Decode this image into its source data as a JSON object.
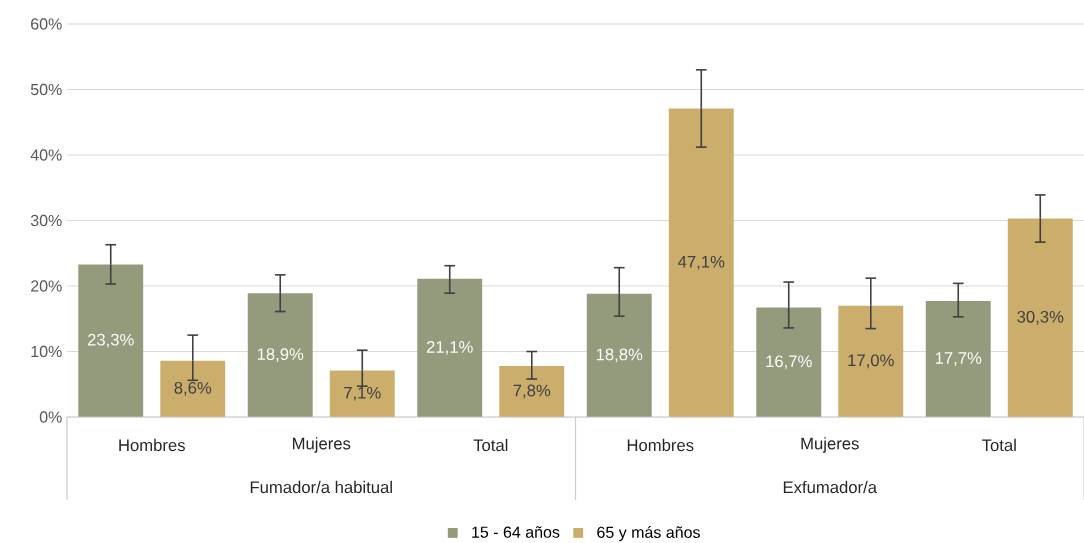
{
  "chart_data": {
    "type": "bar",
    "categories": [
      "Hombres",
      "Mujeres",
      "Total",
      "Hombres",
      "Mujeres",
      "Total"
    ],
    "annotations": [
      "Fumador/a habitual",
      "Exfumador/a"
    ],
    "series": [
      {
        "name": "15 - 64 años",
        "color": "#939b7c",
        "values": [
          23.3,
          18.9,
          21.1,
          18.8,
          16.7,
          17.7
        ],
        "value_labels": [
          "23,3%",
          "18,9%",
          "21,1%",
          "18,8%",
          "16,7%",
          "17,7%"
        ],
        "errors": [
          [
            20.3,
            26.3
          ],
          [
            16.1,
            21.7
          ],
          [
            18.9,
            23.1
          ],
          [
            15.4,
            22.8
          ],
          [
            13.6,
            20.6
          ],
          [
            15.3,
            20.4
          ]
        ]
      },
      {
        "name": "65 y más años",
        "color": "#cbae6c",
        "values": [
          8.6,
          7.1,
          7.8,
          47.1,
          17.0,
          30.3
        ],
        "value_labels": [
          "8,6%",
          "7,1%",
          "7,8%",
          "47,1%",
          "17,0%",
          "30,3%"
        ],
        "errors": [
          [
            5.6,
            12.5
          ],
          [
            4.7,
            10.2
          ],
          [
            5.8,
            10.0
          ],
          [
            41.2,
            53.0
          ],
          [
            13.5,
            21.2
          ],
          [
            26.7,
            33.9
          ]
        ]
      }
    ],
    "ylim": [
      0,
      60
    ],
    "yticks": [
      {
        "value": 0,
        "label": "0%"
      },
      {
        "value": 10,
        "label": "10%"
      },
      {
        "value": 20,
        "label": "20%"
      },
      {
        "value": 30,
        "label": "30%"
      },
      {
        "value": 40,
        "label": "40%"
      },
      {
        "value": 50,
        "label": "50%"
      },
      {
        "value": 60,
        "label": "60%"
      }
    ],
    "grid": "y",
    "legend": "bottom"
  }
}
